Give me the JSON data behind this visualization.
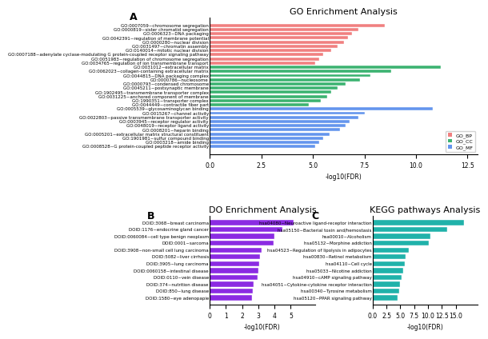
{
  "title_A": "GO Enrichment Analysis",
  "title_B": "DO Enrichment Analysis",
  "title_C": "KEGG pathways Analysis",
  "xlabel_A": "-log10(FDR)",
  "xlabel_B": "-log10(FDR)",
  "xlabel_C": "-log10(FDR)",
  "go_bp_labels": [
    "GO:0007059~chromosome segregation",
    "GO:0000819~sister chromatid segregation",
    "GO:0006323~DNA packaging",
    "GO:0042391~regulation of membrane potential",
    "GO:0000280~nuclear division",
    "GO:0031497~chromatin assembly",
    "GO:0140014~mitotic nuclear division",
    "GO:0007188~adenylate cyclase-modulating G protein-coupled receptor signaling pathway",
    "GO:0051983~regulation of chromosome segregation",
    "GO:0034765~regulation of ion transmembrane transport"
  ],
  "go_bp_values": [
    8.5,
    7.2,
    6.9,
    6.7,
    6.5,
    6.2,
    5.9,
    5.5,
    5.3,
    5.1
  ],
  "go_cc_labels": [
    "GO:0031012~extracellular matrix",
    "GO:0062023~collagen-containing extracellular matrix",
    "GO:0044815~DNA packaging complex",
    "GO:0000786~nucleosome",
    "GO:0000793~condensed chromosome",
    "GO:0045211~postsynaptic membrane",
    "GO:1902495~transmembrane transporter complex",
    "GO:0031225~anchored component of membrane",
    "GO:1990351~transporter complex",
    "GO:0044449~contractile fiber part"
  ],
  "go_cc_values": [
    11.2,
    8.8,
    7.8,
    7.3,
    6.6,
    6.2,
    5.9,
    5.7,
    5.4,
    4.8
  ],
  "go_mf_labels": [
    "GO:0005539~glycosaminoglycan binding",
    "GO:0015267~channel activity",
    "GO:0022803~passive transmembrane transporter activity",
    "GO:0003945~receptor regulator activity",
    "GO:0048019~receptor ligand activity",
    "GO:0008201~heparin binding",
    "GO:0005201~extracellular matrix structural constituent",
    "GO:1901981~sulfur compound binding",
    "GO:0003218~amide binding",
    "GO:0008528~G protein-coupled peptide receptor activity"
  ],
  "go_mf_values": [
    10.8,
    7.5,
    7.2,
    6.8,
    6.6,
    6.3,
    5.8,
    5.5,
    5.3,
    5.1
  ],
  "go_bp_color": "#F08080",
  "go_cc_color": "#3CB371",
  "go_mf_color": "#6495ED",
  "do_labels": [
    "DOID:3068~breast carcinoma",
    "DOID:1176~endocrine gland cancer",
    "DOID:0060084~cell type benign neoplasm",
    "DOID:0001~sarcoma",
    "DOID:3908~non-small cell lung carcinoma",
    "DOID:5082~liver cirrhosis",
    "DOID:3905~lung carcinoma",
    "DOID:0060158~intestinal disease",
    "DOID:0110~vein disease",
    "DOID:374~nutrition disease",
    "DOID:850~lung disease",
    "DOID:1580~eye adenopapie"
  ],
  "do_values": [
    5.2,
    4.5,
    4.0,
    3.95,
    3.2,
    3.1,
    3.05,
    3.0,
    2.95,
    2.7,
    2.65,
    2.6
  ],
  "do_color": "#8B2BE2",
  "kegg_labels": [
    "hsa04080~Neuroactive ligand-receptor interaction",
    "hsa05150~Bacterial toxin and/hemostasis",
    "hsa00010~Alcoholism",
    "hsa05132~Morphine addiction",
    "hsa04523~Regulation of lipolysis in adipocytes",
    "hsa00830~Retinol metabolism",
    "hsa04110~Cell cycle",
    "hsa05033~Nicotine addiction",
    "hsa04910~cAMP signaling pathway",
    "hsa04051~Cytokine-cytokine receptor interaction",
    "hsa00340~Tyrosine metabolism",
    "hsa05120~PPAR signaling pathway"
  ],
  "kegg_values": [
    16.5,
    13.5,
    10.5,
    10.2,
    6.5,
    6.0,
    5.8,
    5.5,
    5.2,
    5.0,
    4.8,
    4.5
  ],
  "kegg_color": "#20B2AA",
  "bg_color": "#FFFFFF",
  "panel_label_fontsize": 9,
  "title_fontsize": 8,
  "tick_fontsize": 4.0,
  "axis_label_fontsize": 5.5
}
